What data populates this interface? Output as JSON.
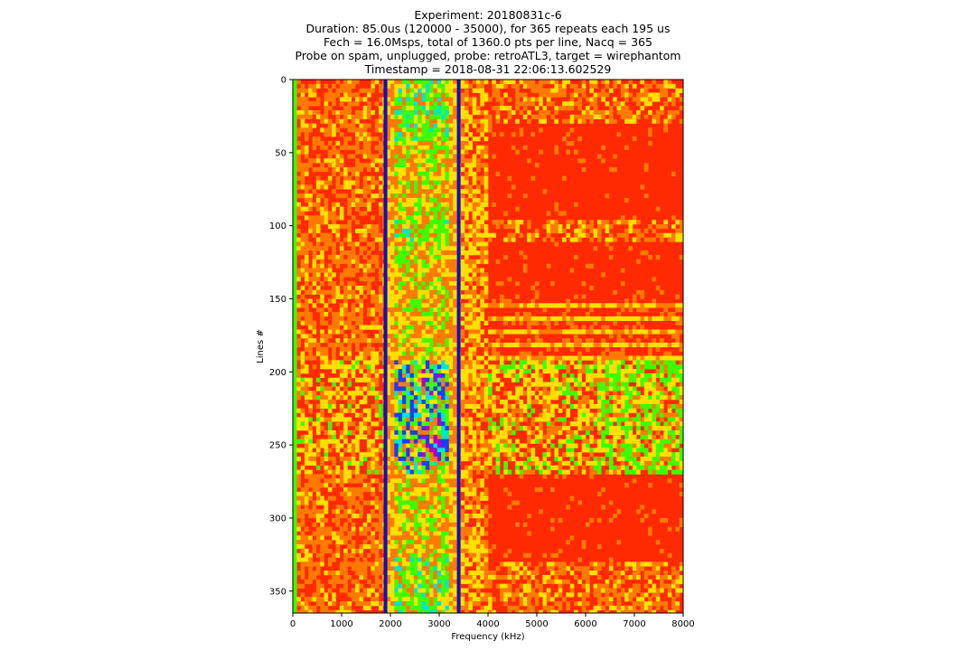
{
  "chart_data": {
    "type": "heatmap",
    "title_lines": [
      "Experiment: 20180831c-6",
      "Duration: 85.0us (120000 - 35000), for 365 repeats each 195 us",
      "Fech = 16.0Msps, total of 1360.0 pts per line, Nacq = 365",
      "Probe on spam, unplugged, probe: retroATL3, target = wirephantom",
      "Timestamp = 2018-08-31 22:06:13.602529"
    ],
    "xlabel": "Frequency (kHz)",
    "ylabel": "Lines #",
    "xlim": [
      0,
      8000
    ],
    "ylim": [
      365,
      0
    ],
    "x_ticks": [
      0,
      1000,
      2000,
      3000,
      4000,
      5000,
      6000,
      7000,
      8000
    ],
    "y_ticks": [
      0,
      50,
      100,
      150,
      200,
      250,
      300,
      350
    ],
    "colormap": "prism-like (red dominant, yellow/green/cyan/blue/magenta at lower values)",
    "colors": {
      "background_red": "#ff2a00",
      "orange": "#ff7a00",
      "yellow": "#ffe000",
      "green": "#3dff00",
      "cyan": "#00e6d0",
      "blue": "#1a3cff",
      "magenta": "#b000c8",
      "marker_line": "#1010c0"
    },
    "vertical_markers_khz": [
      1900,
      3400
    ],
    "row_regions": [
      {
        "lines": [
          0,
          28
        ],
        "character": "mixed orange/red, green-cyan blobs in 2000-3000 band"
      },
      {
        "lines": [
          28,
          95
        ],
        "character": "saturated red above 3500 kHz"
      },
      {
        "lines": [
          95,
          110
        ],
        "character": "mixed, green band 2000-3000"
      },
      {
        "lines": [
          110,
          145
        ],
        "character": "saturated red above 3500 kHz"
      },
      {
        "lines": [
          145,
          190
        ],
        "character": "red with yellow stripes"
      },
      {
        "lines": [
          190,
          270
        ],
        "character": "speckled yellow/green, blue/magenta core near 2500-3000 kHz"
      },
      {
        "lines": [
          270,
          330
        ],
        "character": "saturated red above 3500 kHz"
      },
      {
        "lines": [
          330,
          365
        ],
        "character": "mixed orange/yellow, green-cyan blobs in 2000-3000 band"
      }
    ]
  }
}
